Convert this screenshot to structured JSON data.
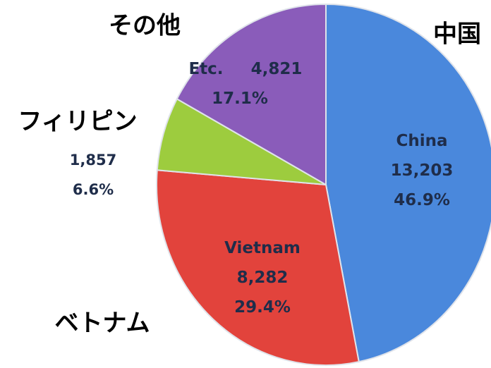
{
  "chart_data": {
    "type": "pie",
    "categories": [
      "China",
      "Vietnam",
      null,
      "Etc."
    ],
    "jp_labels": [
      "中国",
      "ベトナム",
      "フィリピン",
      "その他"
    ],
    "values": [
      13203,
      8282,
      1857,
      4821
    ],
    "value_labels": [
      "13,203",
      "8,282",
      "1,857",
      "4,821"
    ],
    "percent_labels": [
      "46.9%",
      "29.4%",
      "6.6%",
      "17.1%"
    ],
    "colors": [
      "#4a88dc",
      "#e2433c",
      "#9dcc3e",
      "#8a5cba"
    ]
  }
}
